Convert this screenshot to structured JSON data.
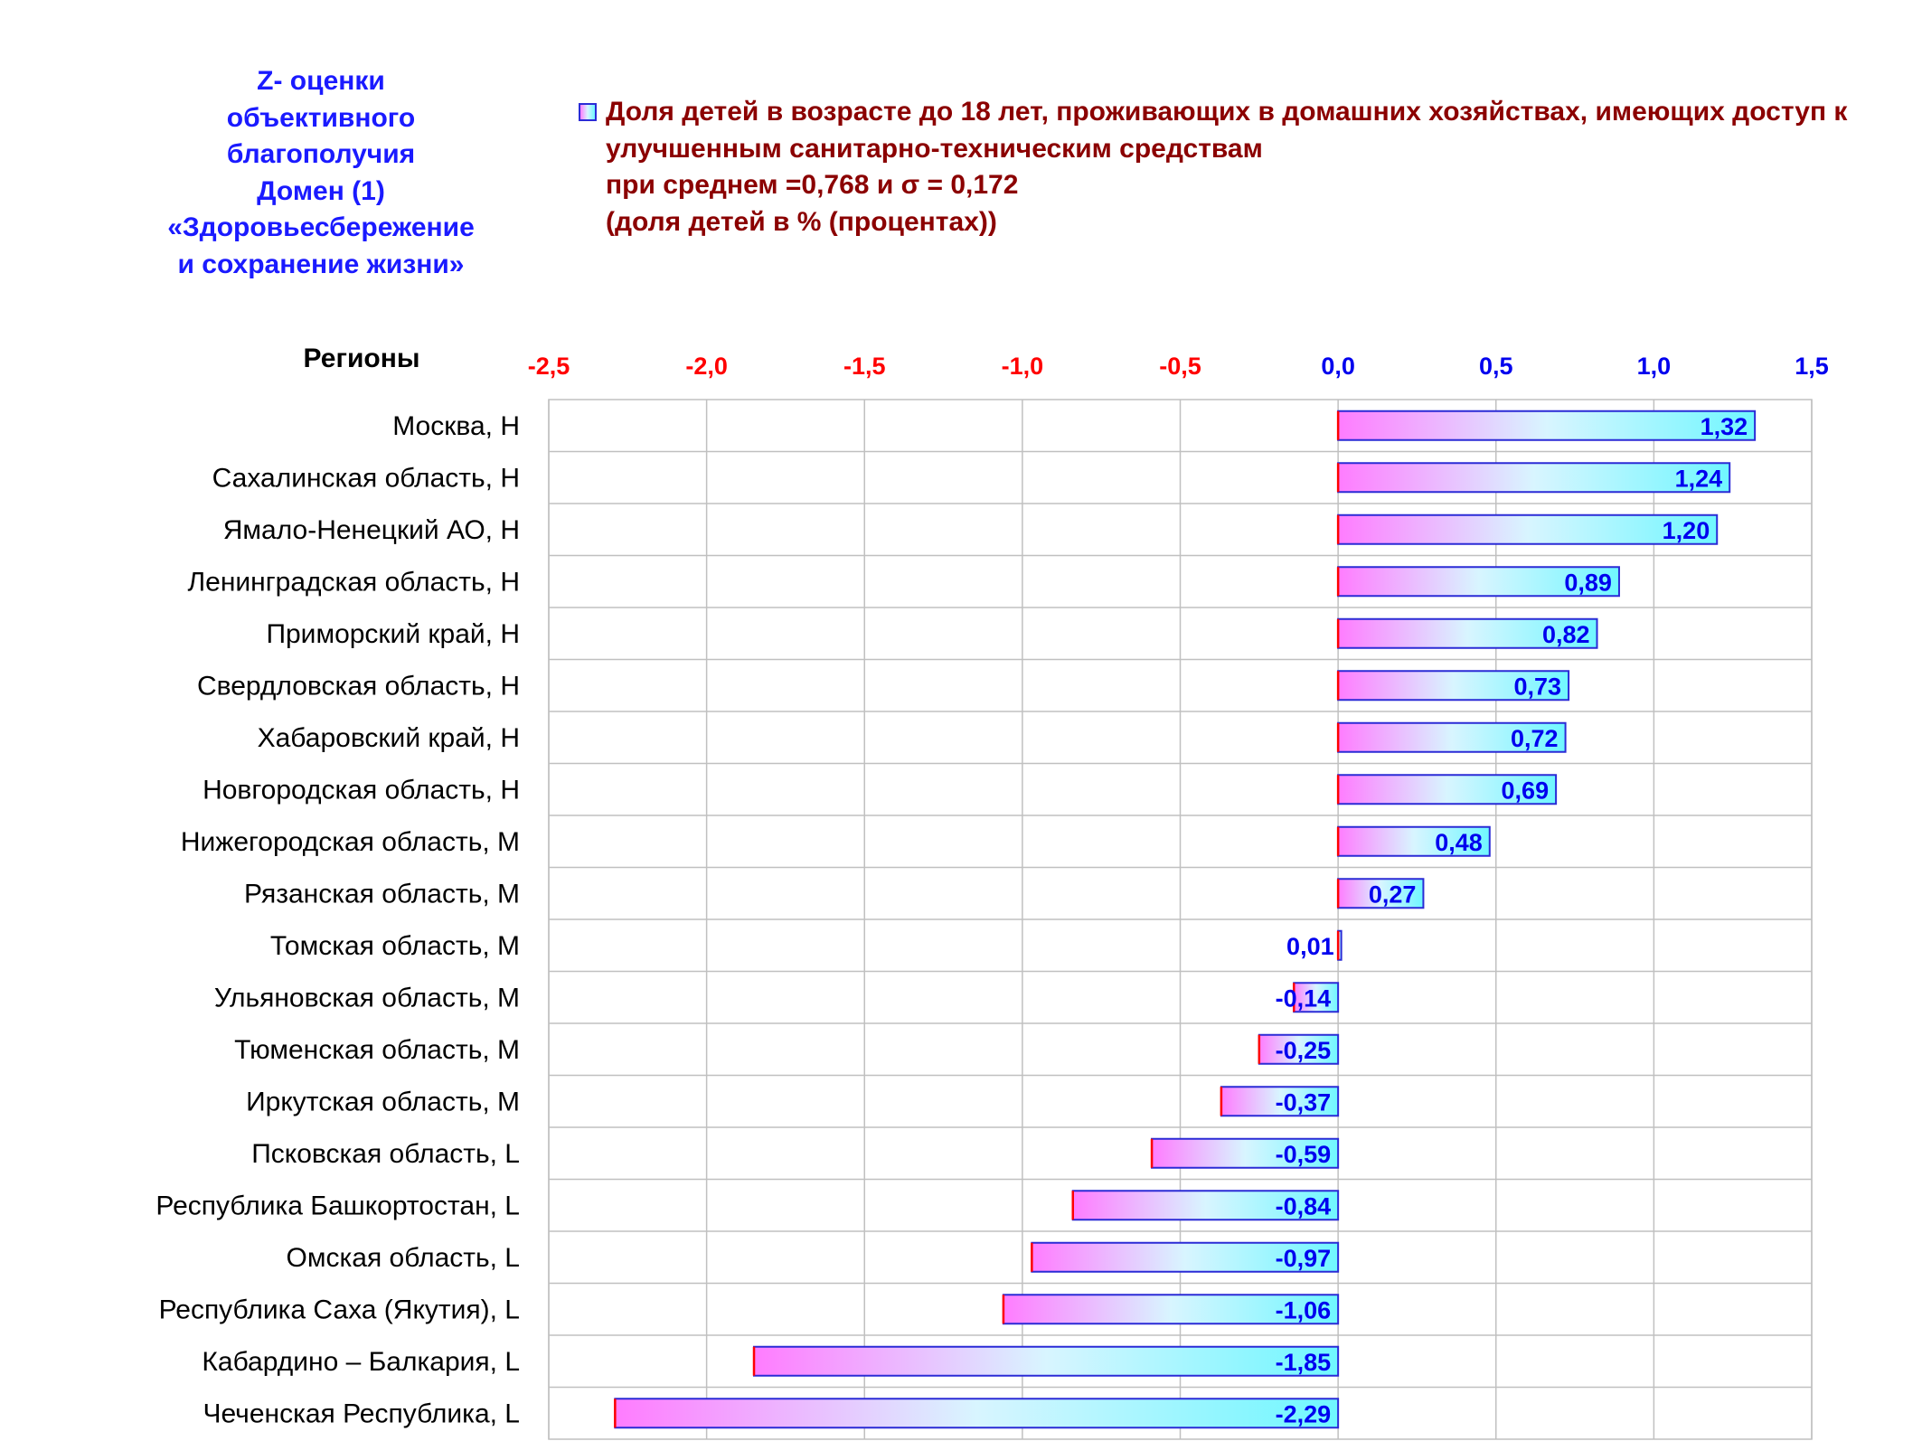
{
  "side_title": {
    "lines": [
      "Z- оценки",
      "объективного",
      "благополучия",
      "Домен (1)",
      "«Здоровьесбережение",
      "и сохранение жизни»"
    ]
  },
  "legend": {
    "icon": "gradient-square-swatch",
    "lines": [
      "Доля детей в возрасте до 18 лет, проживающих в домашних хозяйствах, имеющих доступ к",
      "улучшенным санитарно-техническим средствам",
      "при среднем =0,768  и σ = 0,172",
      "(доля детей в % (процентах))"
    ]
  },
  "colors": {
    "title_blue": "#1a1aff",
    "legend_dark_red": "#8b0000",
    "negative_tick": "#ff0000",
    "positive_tick": "#0000ee",
    "bar_gradient_start": "#ff7cff",
    "bar_gradient_mid": "#d8f5ff",
    "bar_gradient_end": "#6ff7ff",
    "bar_left_border": "#ff0000",
    "bar_border": "#2b2bd6",
    "grid": "#c0c0c0"
  },
  "chart_data": {
    "type": "bar",
    "orientation": "horizontal",
    "category_header": "Регионы",
    "xlim": [
      -2.5,
      1.5
    ],
    "ticks": [
      -2.5,
      -2.0,
      -1.5,
      -1.0,
      -0.5,
      0.0,
      0.5,
      1.0,
      1.5
    ],
    "tick_labels": [
      "-2,5",
      "-2,0",
      "-1,5",
      "-1,0",
      "-0,5",
      "0,0",
      "0,5",
      "1,0",
      "1,5"
    ],
    "grid": true,
    "legend_position": "top",
    "categories": [
      "Москва,  Н",
      "Сахалинская область,  Н",
      "Ямало-Ненецкий АО,  Н",
      "Ленинградская область,  Н",
      "Приморский край,  Н",
      "Свердловская область,  Н",
      "Хабаровский край,  Н",
      "Новгородская область,  Н",
      "Нижегородская область,  М",
      "Рязанская область,  М",
      "Томская область,  М",
      "Ульяновская область,  М",
      "Тюменская область,  М",
      "Иркутская область,  М",
      "Псковская область,  L",
      "Республика Башкортостан,  L",
      "Омская область,  L",
      "Республика Саха (Якутия),  L",
      "Кабардино – Балкария,  L",
      "Чеченская Республика,  L"
    ],
    "values": [
      1.32,
      1.24,
      1.2,
      0.89,
      0.82,
      0.73,
      0.72,
      0.69,
      0.48,
      0.27,
      0.01,
      -0.14,
      -0.25,
      -0.37,
      -0.59,
      -0.84,
      -0.97,
      -1.06,
      -1.85,
      -2.29
    ],
    "value_labels": [
      "1,32",
      "1,24",
      "1,20",
      "0,89",
      "0,82",
      "0,73",
      "0,72",
      "0,69",
      "0,48",
      "0,27",
      "0,01",
      "-0,14",
      "-0,25",
      "-0,37",
      "-0,59",
      "-0,84",
      "-0,97",
      "-1,06",
      "-1,85",
      "-2,29"
    ]
  }
}
